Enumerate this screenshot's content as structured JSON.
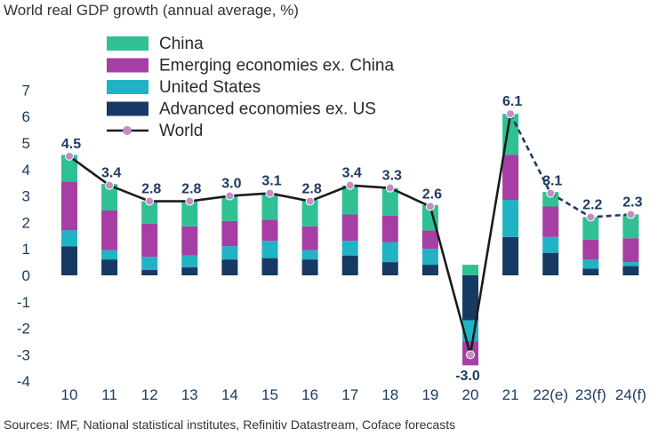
{
  "chart_data": {
    "type": "bar",
    "subtype": "stacked bar with world line",
    "title": "World real GDP growth (annual average, %)",
    "source": "Sources: IMF, National statistical institutes, Refinitiv Datastream, Coface forecasts",
    "categories": [
      "10",
      "11",
      "12",
      "13",
      "14",
      "15",
      "16",
      "17",
      "18",
      "19",
      "20",
      "21",
      "22(e)",
      "23(f)",
      "24(f)"
    ],
    "ylim": [
      -4,
      7
    ],
    "yticks": [
      7,
      6,
      5,
      4,
      3,
      2,
      1,
      0,
      -1,
      -2,
      -3,
      -4
    ],
    "series": [
      {
        "name": "Advanced economies ex. US",
        "color": "#163a62",
        "values": [
          1.1,
          0.6,
          0.2,
          0.3,
          0.6,
          0.65,
          0.6,
          0.75,
          0.5,
          0.4,
          -1.7,
          1.45,
          0.85,
          0.25,
          0.35
        ]
      },
      {
        "name": "United States",
        "color": "#1fb3c3",
        "values": [
          0.6,
          0.35,
          0.5,
          0.45,
          0.5,
          0.65,
          0.35,
          0.55,
          0.75,
          0.6,
          -0.8,
          1.4,
          0.6,
          0.35,
          0.15
        ]
      },
      {
        "name": "Emerging economies ex. China",
        "color": "#a63ea4",
        "values": [
          1.85,
          1.5,
          1.25,
          1.1,
          0.95,
          0.8,
          0.9,
          1.0,
          1.0,
          0.7,
          -0.9,
          1.7,
          1.15,
          0.75,
          0.9
        ]
      },
      {
        "name": "China",
        "color": "#2fc193",
        "values": [
          1.0,
          1.0,
          0.85,
          0.95,
          0.95,
          1.0,
          1.0,
          1.1,
          1.05,
          0.95,
          0.4,
          1.55,
          0.55,
          0.85,
          0.9
        ]
      }
    ],
    "world": {
      "name": "World",
      "values": [
        4.5,
        3.4,
        2.8,
        2.8,
        3.0,
        3.1,
        2.8,
        3.4,
        3.3,
        2.6,
        -3.0,
        6.1,
        3.1,
        2.2,
        2.3
      ],
      "labels": [
        "4.5",
        "3.4",
        "2.8",
        "2.8",
        "3.0",
        "3.1",
        "2.8",
        "3.4",
        "3.3",
        "2.6",
        "-3.0",
        "6.1",
        "3.1",
        "2.2",
        "2.3"
      ],
      "line_color": "#1c1c1c",
      "forecast_line_color": "#1f3b63",
      "marker_color": "#c58cc4",
      "dashed_from_index": 11
    },
    "legend": {
      "position": "top-left",
      "order": [
        "China",
        "Emerging economies ex. China",
        "United States",
        "Advanced economies ex. US",
        "World"
      ]
    }
  }
}
